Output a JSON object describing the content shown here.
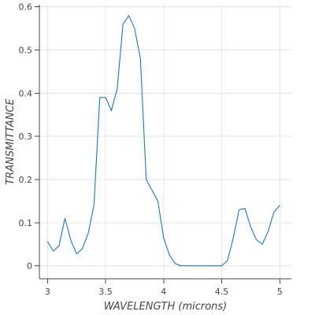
{
  "chart_data": {
    "type": "line",
    "title": "",
    "xlabel": "WAVELENGTH (microns)",
    "ylabel": "TRANSMITTANCE",
    "xlim": [
      2.93,
      5.1
    ],
    "ylim": [
      -0.03,
      0.605
    ],
    "x_ticks": [
      3,
      3.5,
      4,
      4.5,
      5
    ],
    "x_tick_labels": [
      "3",
      "3.5",
      "4",
      "4.5",
      "5"
    ],
    "y_ticks": [
      0,
      0.1,
      0.2,
      0.3,
      0.4,
      0.5,
      0.6
    ],
    "y_tick_labels": [
      "0",
      "0.1",
      "0.2",
      "0.3",
      "0.4",
      "0.5",
      "0.6"
    ],
    "grid": true,
    "legend": false,
    "series": [
      {
        "color": "#1f77b4",
        "x": [
          3.0,
          3.05,
          3.1,
          3.15,
          3.2,
          3.25,
          3.3,
          3.35,
          3.4,
          3.45,
          3.5,
          3.55,
          3.6,
          3.65,
          3.7,
          3.75,
          3.8,
          3.85,
          3.9,
          3.95,
          4.0,
          4.05,
          4.1,
          4.15,
          4.2,
          4.25,
          4.3,
          4.35,
          4.4,
          4.45,
          4.5,
          4.55,
          4.6,
          4.65,
          4.7,
          4.75,
          4.8,
          4.85,
          4.9,
          4.95,
          5.0
        ],
        "y": [
          0.056,
          0.034,
          0.047,
          0.11,
          0.06,
          0.028,
          0.04,
          0.075,
          0.14,
          0.39,
          0.39,
          0.36,
          0.41,
          0.56,
          0.58,
          0.55,
          0.48,
          0.2,
          0.175,
          0.15,
          0.065,
          0.025,
          0.005,
          0.0,
          0.0,
          0.0,
          0.0,
          0.0,
          0.0,
          0.0,
          0.0,
          0.012,
          0.065,
          0.13,
          0.133,
          0.09,
          0.06,
          0.05,
          0.08,
          0.125,
          0.14
        ]
      }
    ]
  }
}
